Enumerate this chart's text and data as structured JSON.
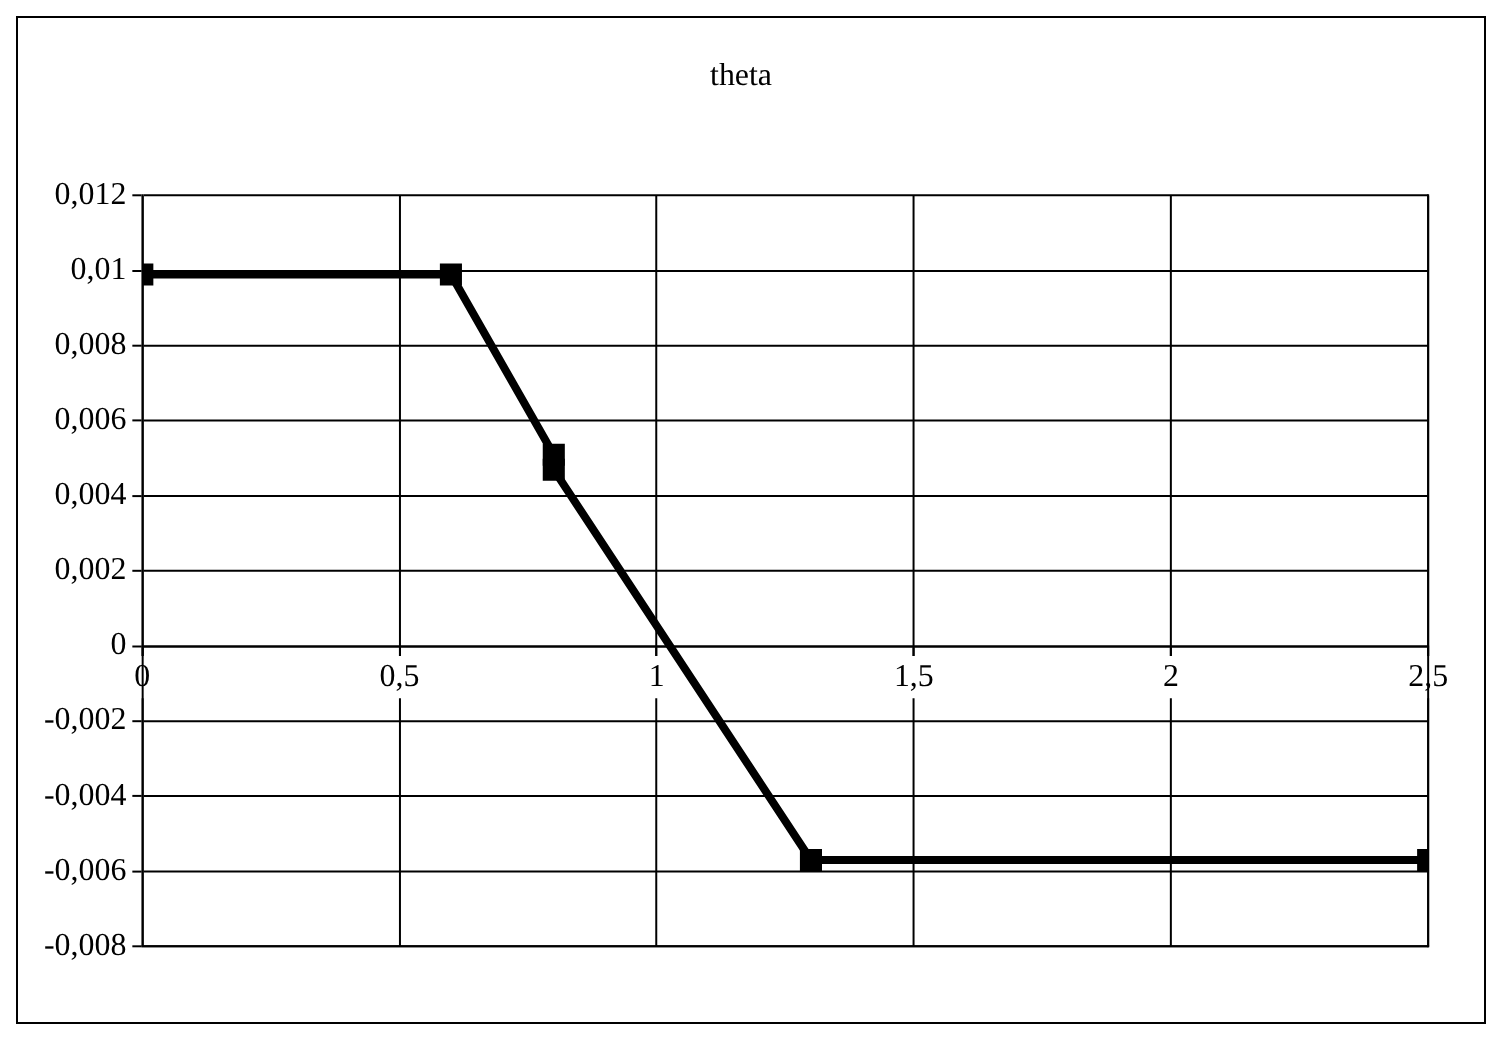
{
  "chart_data": {
    "type": "line",
    "title": "theta",
    "x": [
      0,
      0.6,
      0.8,
      0.8,
      1.3,
      2.5
    ],
    "series": [
      {
        "color": "#000000",
        "values": [
          0.0099,
          0.0099,
          0.0051,
          0.0047,
          -0.0057,
          -0.0057
        ]
      }
    ],
    "xlim": [
      0,
      2.5
    ],
    "xticks": [
      {
        "value": 0,
        "label": "0"
      },
      {
        "value": 0.5,
        "label": "0,5"
      },
      {
        "value": 1,
        "label": "1"
      },
      {
        "value": 1.5,
        "label": "1,5"
      },
      {
        "value": 2,
        "label": "2"
      },
      {
        "value": 2.5,
        "label": "2,5"
      }
    ],
    "ylim": [
      -0.008,
      0.012
    ],
    "yticks": [
      {
        "value": -0.008,
        "label": "-0,008"
      },
      {
        "value": -0.006,
        "label": "-0,006"
      },
      {
        "value": -0.004,
        "label": "-0,004"
      },
      {
        "value": -0.002,
        "label": "-0,002"
      },
      {
        "value": 0,
        "label": "0"
      },
      {
        "value": 0.002,
        "label": "0,002"
      },
      {
        "value": 0.004,
        "label": "0,004"
      },
      {
        "value": 0.006,
        "label": "0,006"
      },
      {
        "value": 0.008,
        "label": "0,008"
      },
      {
        "value": 0.01,
        "label": "0,01"
      },
      {
        "value": 0.012,
        "label": "0,012"
      }
    ],
    "grid": true,
    "legend": false,
    "marker": "square",
    "line_style": "solid"
  }
}
